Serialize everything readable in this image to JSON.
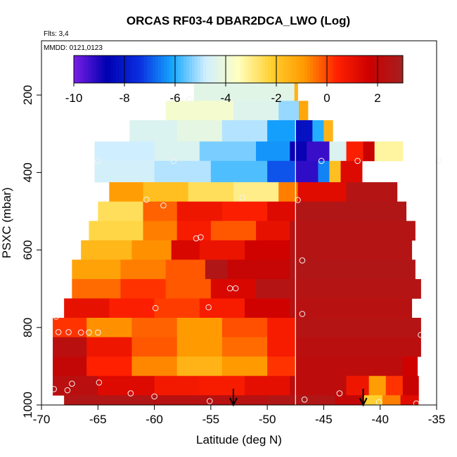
{
  "chart_data": {
    "type": "heatmap",
    "title": "ORCAS RF03-4 DBAR2DCA_LWO (Log)",
    "flights_label": "Flts: 3,4",
    "date_label": "MMDD: 0121,0123",
    "xlabel": "Latitude (deg N)",
    "ylabel": "PSXC (mbar)",
    "xlim": [
      -70,
      -35
    ],
    "ylim": [
      1000,
      60
    ],
    "x_ticks": [
      -70,
      -65,
      -60,
      -55,
      -50,
      -45,
      -40,
      -35
    ],
    "x_tick_labels": [
      "-70",
      "-65",
      "-60",
      "-55",
      "-50",
      "-45",
      "-40",
      "-35"
    ],
    "y_ticks": [
      200,
      400,
      600,
      800,
      1000
    ],
    "y_tick_labels": [
      "200",
      "400",
      "600",
      "800",
      "1000"
    ],
    "colorbar": {
      "range": [
        -10,
        3
      ],
      "ticks": [
        -10,
        -8,
        -6,
        -4,
        -2,
        0,
        2
      ],
      "tick_labels": [
        "-10",
        "-8",
        "-6",
        "-4",
        "-2",
        "0",
        "2"
      ],
      "stops": [
        "#7a1ee6",
        "#0000b0",
        "#0a2fe0",
        "#16a8ff",
        "#cfeeff",
        "#ffffc0",
        "#ffd030",
        "#ff9a00",
        "#ff2000",
        "#cc0000",
        "#a52020"
      ]
    },
    "vertical_marker_lat": -47.5,
    "arrow_lats": [
      -53,
      -41.5
    ],
    "bands": [
      {
        "p_top": 165,
        "p_bot": 215,
        "lat_min": -56.5,
        "lat_max": -47.2,
        "segs": [
          [
            -56.5,
            -47.6,
            -4.3
          ],
          [
            -47.6,
            -47.3,
            -1.5
          ]
        ]
      },
      {
        "p_top": 215,
        "p_bot": 265,
        "lat_min": -59,
        "lat_max": -46.4,
        "segs": [
          [
            -59,
            -53,
            -3.8
          ],
          [
            -53,
            -49,
            -4.4
          ],
          [
            -49,
            -47.2,
            -5.2
          ],
          [
            -47.2,
            -46.4,
            -1.2
          ]
        ]
      },
      {
        "p_top": 265,
        "p_bot": 320,
        "lat_min": -62.2,
        "lat_max": -44.2,
        "segs": [
          [
            -62.2,
            -58,
            -4.5
          ],
          [
            -58,
            -54,
            -4.2
          ],
          [
            -54,
            -50,
            -5.0
          ],
          [
            -50,
            -47.5,
            -6.2
          ],
          [
            -47.5,
            -46,
            -8.2
          ],
          [
            -46,
            -45,
            -6.0
          ],
          [
            -45,
            -44.2,
            -1.5
          ]
        ]
      },
      {
        "p_top": 320,
        "p_bot": 370,
        "lat_min": -65.3,
        "lat_max": -38,
        "segs": [
          [
            -65.3,
            -60,
            -4.8
          ],
          [
            -60,
            -56,
            -4.5
          ],
          [
            -56,
            -51,
            -5.4
          ],
          [
            -51,
            -48,
            -6.3
          ],
          [
            -48,
            -46.5,
            -8.8
          ],
          [
            -46.5,
            -44.5,
            -9.3
          ],
          [
            -44.5,
            -43,
            -4.5
          ],
          [
            -43,
            -41.5,
            0.5
          ],
          [
            -41.5,
            -40.5,
            1.8
          ],
          [
            -40.5,
            -38,
            -3.2
          ]
        ]
      },
      {
        "p_top": 370,
        "p_bot": 425,
        "lat_min": -65.3,
        "lat_max": -41.6,
        "segs": [
          [
            -65.3,
            -60,
            -4.7
          ],
          [
            -60,
            -55,
            -5.0
          ],
          [
            -55,
            -50,
            -5.7
          ],
          [
            -50,
            -47.5,
            -7.0
          ],
          [
            -47.5,
            -45.5,
            -9.2
          ],
          [
            -45.5,
            -44.5,
            -6.5
          ],
          [
            -44.5,
            -43.5,
            -1.8
          ],
          [
            -43.5,
            -41.6,
            1.3
          ]
        ]
      },
      {
        "p_top": 425,
        "p_bot": 475,
        "lat_min": -64,
        "lat_max": -38.5,
        "segs": [
          [
            -64,
            -61,
            -1.0
          ],
          [
            -61,
            -57,
            -1.8
          ],
          [
            -57,
            -53,
            -2.6
          ],
          [
            -53,
            -49,
            -3.0
          ],
          [
            -49,
            -47.3,
            -0.6
          ],
          [
            -47.3,
            -43,
            1.2
          ],
          [
            -43,
            -38.5,
            2.5
          ]
        ]
      },
      {
        "p_top": 475,
        "p_bot": 525,
        "lat_min": -65,
        "lat_max": -37.7,
        "segs": [
          [
            -65,
            -61,
            -2.6
          ],
          [
            -61,
            -58,
            -0.3
          ],
          [
            -58,
            -54,
            0.8
          ],
          [
            -54,
            -50,
            0.5
          ],
          [
            -50,
            -47.5,
            1.3
          ],
          [
            -47.5,
            -37.7,
            2.6
          ]
        ]
      },
      {
        "p_top": 525,
        "p_bot": 575,
        "lat_min": -65.8,
        "lat_max": -36.9,
        "segs": [
          [
            -65.8,
            -61,
            -2.4
          ],
          [
            -61,
            -58,
            -0.6
          ],
          [
            -58,
            -55,
            0.6
          ],
          [
            -55,
            -51,
            -0.2
          ],
          [
            -51,
            -48,
            1.0
          ],
          [
            -48,
            -36.9,
            2.5
          ]
        ]
      },
      {
        "p_top": 575,
        "p_bot": 625,
        "lat_min": -66.5,
        "lat_max": -37.2,
        "segs": [
          [
            -66.5,
            -62,
            -1.6
          ],
          [
            -62,
            -58.5,
            -0.8
          ],
          [
            -58.5,
            -56,
            1.4
          ],
          [
            -56,
            -52,
            0.9
          ],
          [
            -52,
            -48,
            1.6
          ],
          [
            -48,
            -37.2,
            2.5
          ]
        ]
      },
      {
        "p_top": 625,
        "p_bot": 675,
        "lat_min": -67.3,
        "lat_max": -36.9,
        "segs": [
          [
            -67.3,
            -63,
            -1.1
          ],
          [
            -63,
            -59,
            -0.6
          ],
          [
            -59,
            -55.5,
            -0.2
          ],
          [
            -55.5,
            -53.5,
            2.6
          ],
          [
            -53.5,
            -48,
            1.9
          ],
          [
            -48,
            -36.9,
            2.6
          ]
        ]
      },
      {
        "p_top": 675,
        "p_bot": 725,
        "lat_min": -67.3,
        "lat_max": -36.4,
        "segs": [
          [
            -67.3,
            -63,
            -0.4
          ],
          [
            -63,
            -59,
            0.2
          ],
          [
            -59,
            -55,
            -0.2
          ],
          [
            -55,
            -51,
            1.4
          ],
          [
            -51,
            -36.4,
            2.5
          ]
        ]
      },
      {
        "p_top": 725,
        "p_bot": 775,
        "lat_min": -68,
        "lat_max": -37.2,
        "segs": [
          [
            -68,
            -64,
            1.0
          ],
          [
            -64,
            -60,
            0.5
          ],
          [
            -60,
            -56,
            0.1
          ],
          [
            -56,
            -52,
            0.6
          ],
          [
            -52,
            -48,
            1.6
          ],
          [
            -48,
            -37.2,
            2.4
          ]
        ]
      },
      {
        "p_top": 775,
        "p_bot": 825,
        "lat_min": -69,
        "lat_max": -36.4,
        "segs": [
          [
            -69,
            -66,
            0.2
          ],
          [
            -66,
            -62,
            -0.8
          ],
          [
            -62,
            -58,
            -0.3
          ],
          [
            -58,
            -54,
            -0.9
          ],
          [
            -54,
            -50,
            -0.1
          ],
          [
            -50,
            -47.5,
            0.6
          ],
          [
            -47.5,
            -36.4,
            2.5
          ]
        ]
      },
      {
        "p_top": 825,
        "p_bot": 875,
        "lat_min": -69,
        "lat_max": -36.4,
        "segs": [
          [
            -69,
            -66,
            2.3
          ],
          [
            -66,
            -62,
            0.8
          ],
          [
            -62,
            -58,
            -0.2
          ],
          [
            -58,
            -54,
            -0.9
          ],
          [
            -54,
            -50,
            -0.4
          ],
          [
            -50,
            -47.5,
            0.6
          ],
          [
            -47.5,
            -36.4,
            2.3
          ]
        ]
      },
      {
        "p_top": 875,
        "p_bot": 925,
        "lat_min": -69,
        "lat_max": -36.7,
        "segs": [
          [
            -69,
            -66,
            2.0
          ],
          [
            -66,
            -62,
            0.4
          ],
          [
            -62,
            -58,
            -0.7
          ],
          [
            -58,
            -54,
            -1.5
          ],
          [
            -54,
            -50,
            -0.9
          ],
          [
            -50,
            -47.5,
            0.2
          ],
          [
            -47.5,
            -38,
            2.2
          ],
          [
            -38,
            -36.7,
            1.6
          ]
        ]
      },
      {
        "p_top": 925,
        "p_bot": 975,
        "lat_min": -69,
        "lat_max": -36.6,
        "segs": [
          [
            -69,
            -65,
            2.3
          ],
          [
            -65,
            -60,
            1.3
          ],
          [
            -60,
            -56,
            0.7
          ],
          [
            -56,
            -52,
            0.6
          ],
          [
            -52,
            -48,
            1.1
          ],
          [
            -48,
            -43,
            2.2
          ],
          [
            -43,
            -41,
            0.8
          ],
          [
            -41,
            -39.5,
            -1.0
          ],
          [
            -39.5,
            -38,
            0.2
          ],
          [
            -38,
            -36.6,
            1.8
          ]
        ]
      },
      {
        "p_top": 975,
        "p_bot": 1005,
        "lat_min": -68,
        "lat_max": -36.6,
        "segs": [
          [
            -68,
            -60,
            2.6
          ],
          [
            -60,
            -50,
            2.4
          ],
          [
            -50,
            -44,
            2.6
          ],
          [
            -44,
            -41.5,
            2.0
          ],
          [
            -41.5,
            -39.8,
            -2.2
          ],
          [
            -39.8,
            -38.2,
            -0.6
          ],
          [
            -38.2,
            -36.6,
            1.2
          ]
        ]
      }
    ],
    "points": [
      [
        -56.6,
        167
      ],
      [
        -51,
        167
      ],
      [
        -56.9,
        211
      ],
      [
        -65,
        370
      ],
      [
        -58.3,
        370
      ],
      [
        -45.2,
        370
      ],
      [
        -42,
        370
      ],
      [
        -34.8,
        370
      ],
      [
        -60.7,
        470
      ],
      [
        -59.2,
        485
      ],
      [
        -52.2,
        465
      ],
      [
        -47.3,
        471
      ],
      [
        -56.3,
        570
      ],
      [
        -55.9,
        567
      ],
      [
        -46.9,
        627
      ],
      [
        -53.3,
        699
      ],
      [
        -52.8,
        699
      ],
      [
        -59.9,
        750
      ],
      [
        -55.2,
        748
      ],
      [
        -46.9,
        765
      ],
      [
        -68.7,
        772
      ],
      [
        -68.5,
        812
      ],
      [
        -67.6,
        812
      ],
      [
        -66.5,
        813
      ],
      [
        -65.8,
        813
      ],
      [
        -65,
        813
      ],
      [
        -36.4,
        819
      ],
      [
        -68.9,
        959
      ],
      [
        -67.7,
        962
      ],
      [
        -67.3,
        945
      ],
      [
        -64.9,
        942
      ],
      [
        -62.1,
        970
      ],
      [
        -60,
        978
      ],
      [
        -55.1,
        990
      ],
      [
        -46.7,
        986
      ],
      [
        -43.6,
        970
      ],
      [
        -40.1,
        993
      ],
      [
        -36.8,
        996
      ]
    ]
  }
}
